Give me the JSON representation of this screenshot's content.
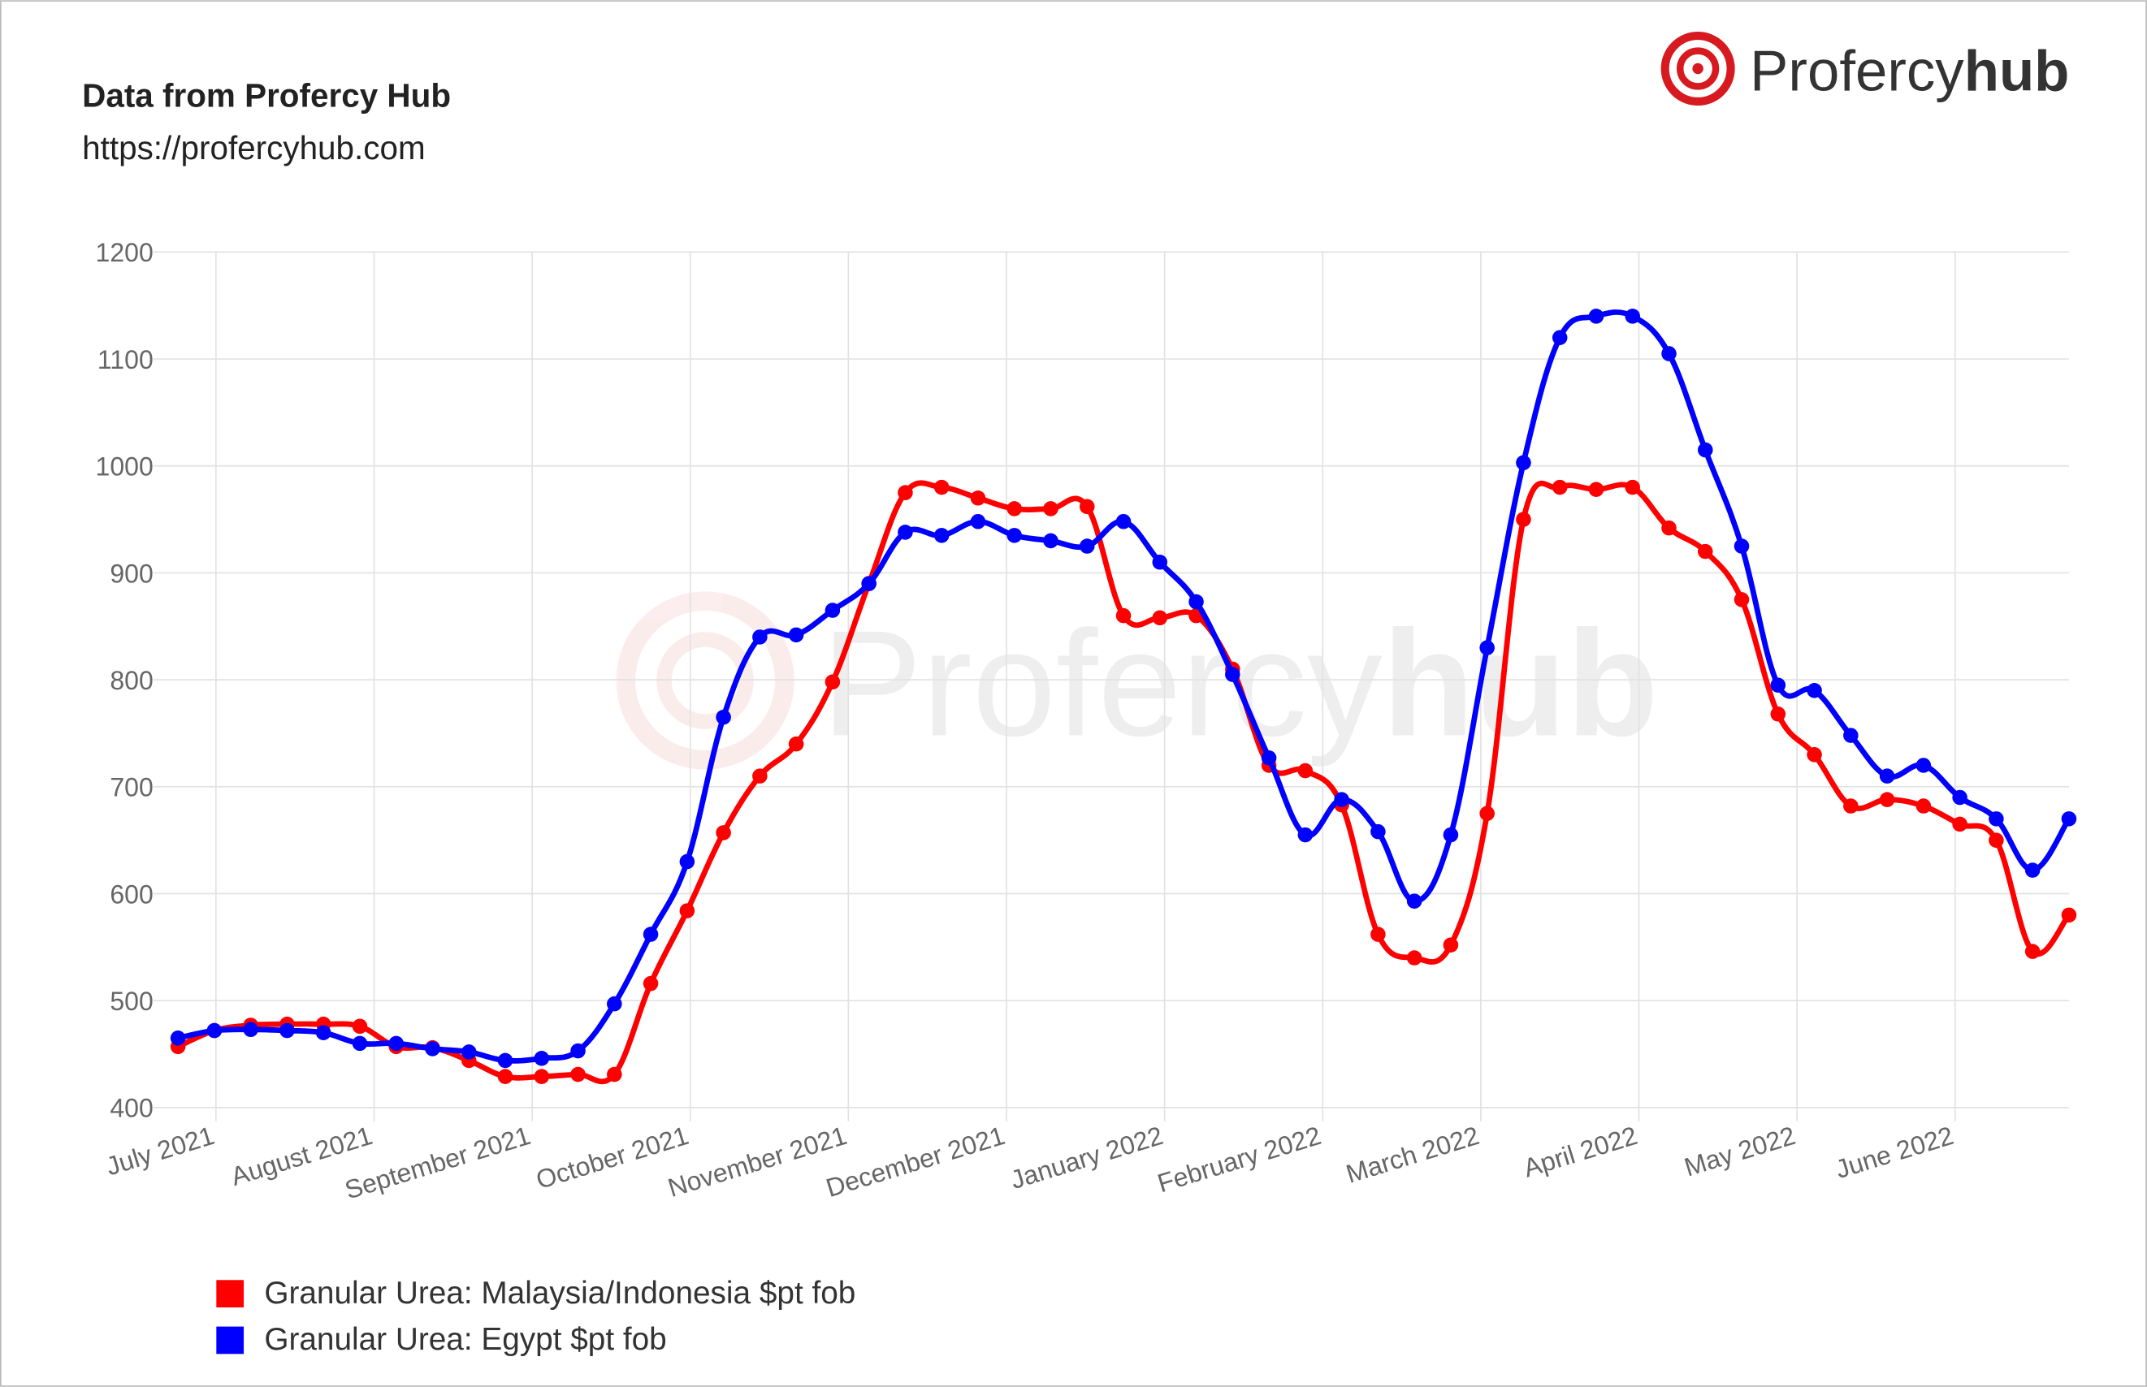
{
  "chart_data": {
    "type": "line",
    "title": "Data from Profercy Hub",
    "subtitle": "https://profercyhub.com",
    "logo": {
      "name": "Profercy",
      "suffix": "hub"
    },
    "x": [
      -0.24,
      -0.01,
      0.22,
      0.45,
      0.68,
      0.91,
      1.14,
      1.37,
      1.6,
      1.83,
      2.06,
      2.29,
      2.52,
      2.75,
      2.98,
      3.21,
      3.44,
      3.67,
      3.9,
      4.13,
      4.36,
      4.59,
      4.82,
      5.05,
      5.28,
      5.51,
      5.74,
      5.97,
      6.2,
      6.43,
      6.66,
      6.89,
      7.12,
      7.35,
      7.58,
      7.81,
      8.04,
      8.27,
      8.5,
      8.73,
      8.96,
      9.19,
      9.42,
      9.65,
      9.88,
      10.11,
      10.34,
      10.57,
      10.8,
      11.03,
      11.26,
      11.49,
      11.72
    ],
    "xlim": [
      -0.24,
      11.72
    ],
    "xticks": [
      {
        "value": 0,
        "label": "July 2021"
      },
      {
        "value": 1,
        "label": "August 2021"
      },
      {
        "value": 2,
        "label": "September 2021"
      },
      {
        "value": 3,
        "label": "October 2021"
      },
      {
        "value": 4,
        "label": "November 2021"
      },
      {
        "value": 5,
        "label": "December 2021"
      },
      {
        "value": 6,
        "label": "January 2022"
      },
      {
        "value": 7,
        "label": "February 2022"
      },
      {
        "value": 8,
        "label": "March 2022"
      },
      {
        "value": 9,
        "label": "April 2022"
      },
      {
        "value": 10,
        "label": "May 2022"
      },
      {
        "value": 11,
        "label": "June 2022"
      }
    ],
    "ylim": [
      400,
      1200
    ],
    "yticks": [
      400,
      500,
      600,
      700,
      800,
      900,
      1000,
      1100,
      1200
    ],
    "grid": true,
    "legend": "bottom-left",
    "series": [
      {
        "name": "Granular Urea: Malaysia/Indonesia $pt fob",
        "color": "#ff0000",
        "values": [
          457,
          472,
          477,
          478,
          478,
          476,
          457,
          456,
          444,
          429,
          429,
          431,
          431,
          516,
          584,
          657,
          710,
          740,
          798,
          890,
          975,
          980,
          970,
          960,
          960,
          962,
          860,
          858,
          860,
          810,
          720,
          715,
          683,
          562,
          540,
          552,
          675,
          950,
          980,
          978,
          980,
          942,
          920,
          875,
          768,
          730,
          682,
          688,
          682,
          665,
          650,
          546,
          580
        ]
      },
      {
        "name": "Granular Urea: Egypt $pt fob",
        "color": "#0000ff",
        "values": [
          465,
          472,
          473,
          472,
          470,
          460,
          460,
          455,
          452,
          444,
          446,
          453,
          497,
          562,
          630,
          765,
          840,
          842,
          865,
          890,
          938,
          935,
          948,
          935,
          930,
          925,
          948,
          910,
          873,
          805,
          727,
          655,
          688,
          658,
          593,
          655,
          830,
          1003,
          1120,
          1140,
          1140,
          1105,
          1015,
          925,
          795,
          790,
          748,
          710,
          720,
          690,
          670,
          622,
          670
        ]
      }
    ]
  }
}
